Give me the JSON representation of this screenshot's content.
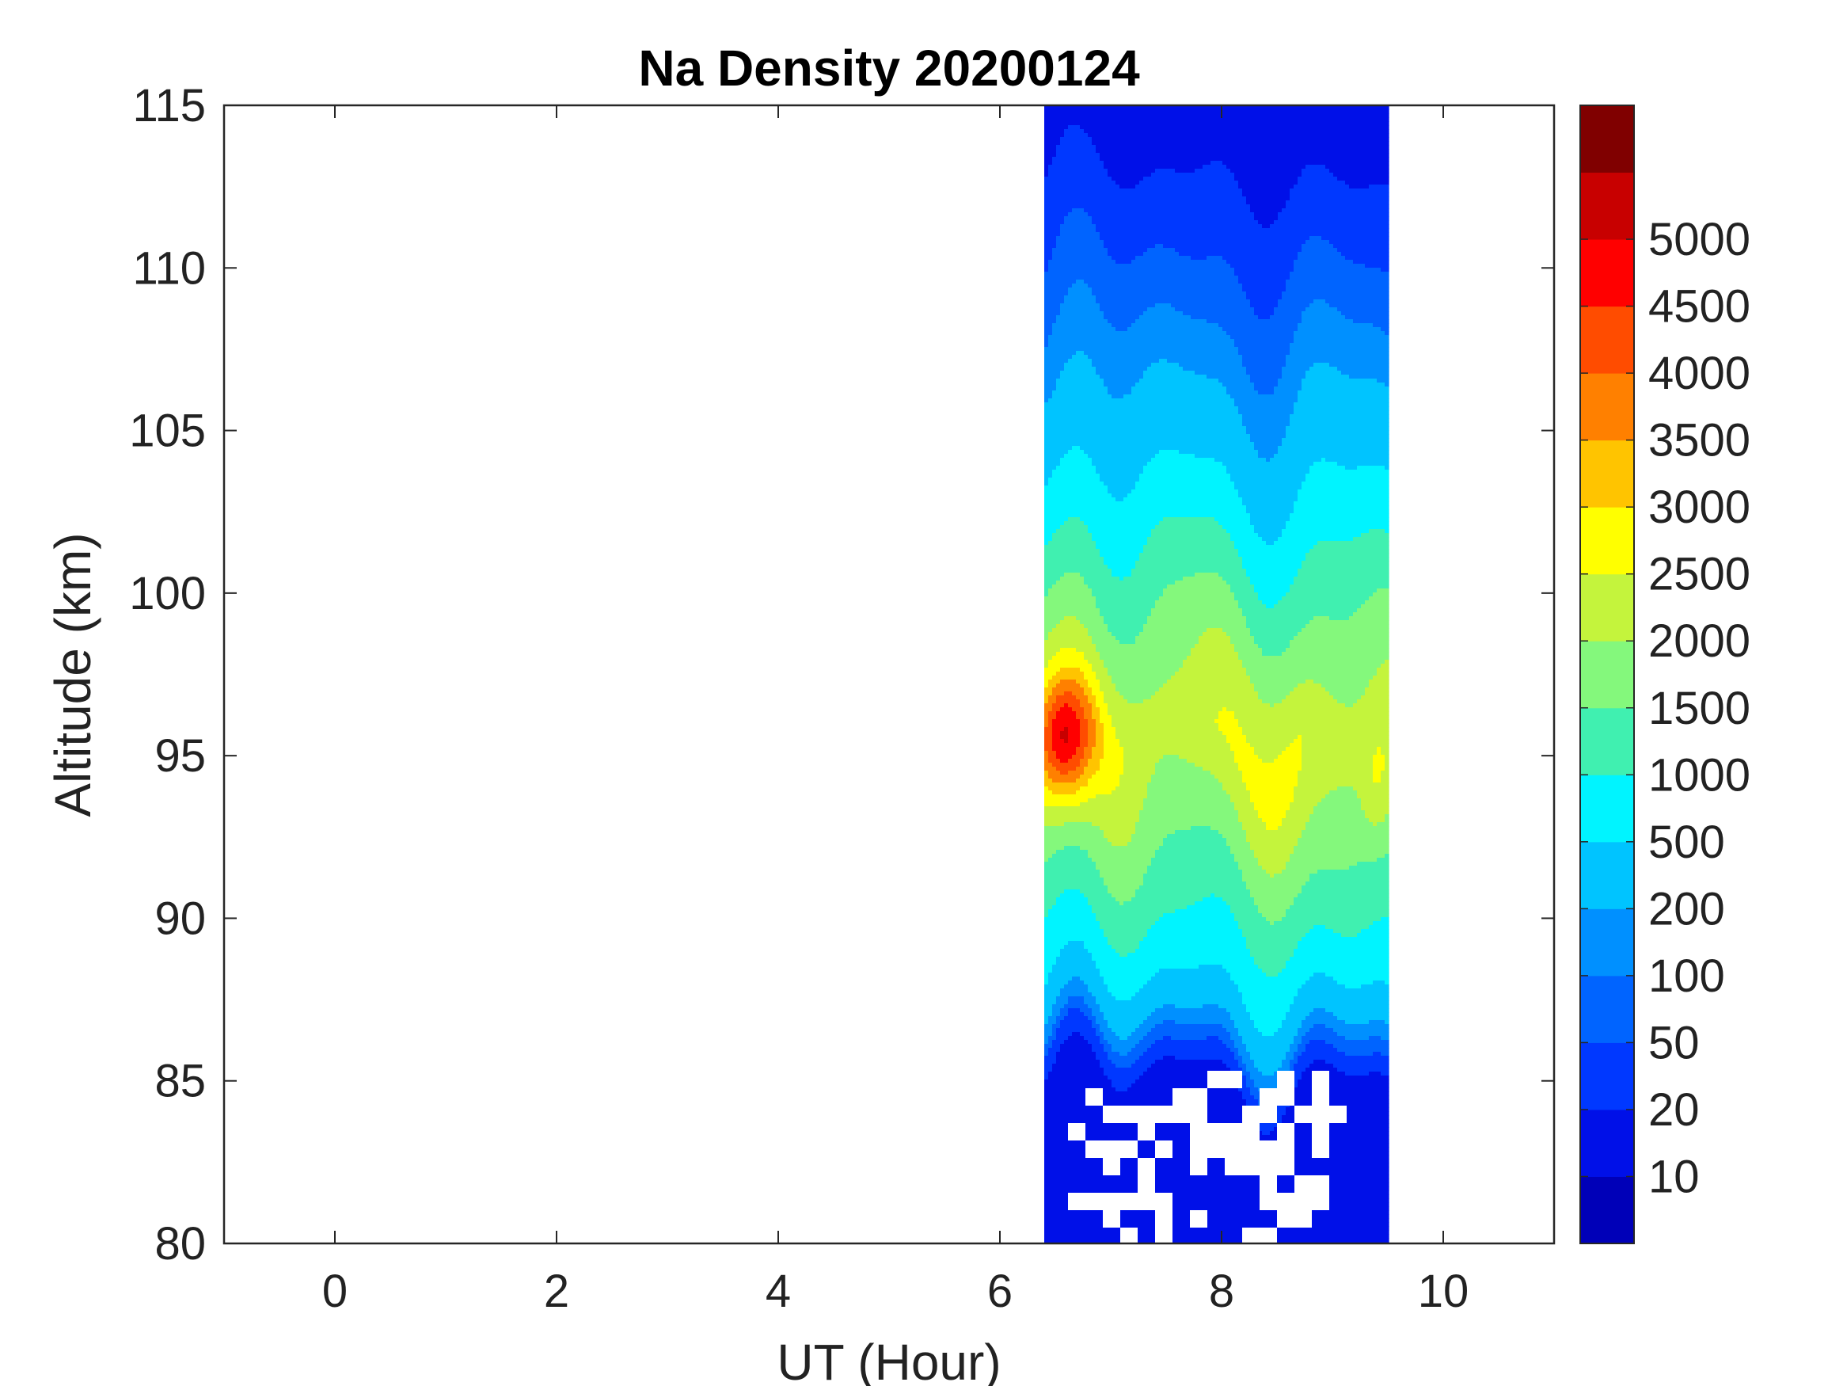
{
  "chart_data": {
    "type": "heatmap",
    "subtype": "filled-contour",
    "title": "Na Density 20200124",
    "xlabel": "UT (Hour)",
    "ylabel": "Altitude (km)",
    "xlim": [
      -1,
      11
    ],
    "ylim": [
      80,
      115
    ],
    "x_ticks": [
      "0",
      "2",
      "4",
      "6",
      "8",
      "10"
    ],
    "y_ticks": [
      "80",
      "85",
      "90",
      "95",
      "100",
      "105",
      "110",
      "115"
    ],
    "data_x_range": [
      6.4,
      9.5
    ],
    "colorbar": {
      "tick_labels": [
        "10",
        "20",
        "50",
        "100",
        "200",
        "500",
        "1000",
        "1500",
        "2000",
        "2500",
        "3000",
        "3500",
        "4000",
        "4500",
        "5000"
      ],
      "levels": [
        0,
        10,
        20,
        50,
        100,
        200,
        500,
        1000,
        1500,
        2000,
        2500,
        3000,
        3500,
        4000,
        4500,
        5000,
        5500
      ],
      "colors": [
        "#0000b8",
        "#0010e8",
        "#0038ff",
        "#0064ff",
        "#0090ff",
        "#00c4ff",
        "#00f4ff",
        "#40f0b0",
        "#84f87c",
        "#c4f43c",
        "#ffff00",
        "#ffc400",
        "#ff8000",
        "#ff4c00",
        "#ff0000",
        "#c80000",
        "#800000"
      ]
    },
    "profile": {
      "altitude_km": [
        85,
        86,
        86.5,
        87.5,
        88.5,
        90,
        91.5,
        93,
        94.5,
        95.5,
        96.5,
        98,
        99.5,
        101,
        102.5,
        104,
        105.5,
        107.5,
        109.5,
        112,
        114
      ],
      "density": [
        15,
        60,
        150,
        350,
        700,
        1100,
        1500,
        1900,
        2300,
        2450,
        2250,
        1900,
        1500,
        1100,
        700,
        400,
        250,
        120,
        60,
        25,
        12
      ]
    },
    "peak": {
      "ut_hour": 6.6,
      "altitude_km": 95.5,
      "density": 4800
    }
  }
}
